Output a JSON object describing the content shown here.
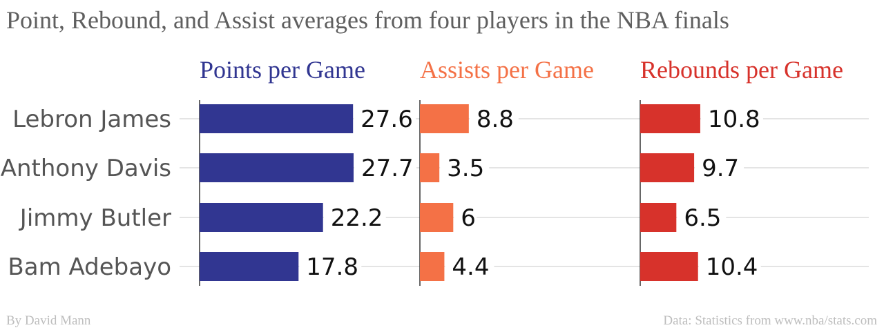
{
  "title": "Point, Rebound, and Assist averages from four players in the NBA finals",
  "footer": {
    "credit": "By David Mann",
    "source": "Data: Statistics from www.nba/stats.com"
  },
  "chart_data": {
    "type": "bar",
    "orientation": "horizontal",
    "title": "Point, Rebound, and Assist averages from four players in the NBA finals",
    "categories": [
      "Lebron James",
      "Anthony Davis",
      "Jimmy Butler",
      "Bam Adebayo"
    ],
    "series": [
      {
        "name": "Points per Game",
        "color": "#313691",
        "values": [
          27.6,
          27.7,
          22.2,
          17.8
        ]
      },
      {
        "name": "Assists per Game",
        "color": "#f47146",
        "values": [
          8.8,
          3.5,
          6,
          4.4
        ]
      },
      {
        "name": "Rebounds per Game",
        "color": "#d7322b",
        "values": [
          10.8,
          9.7,
          6.5,
          10.4
        ]
      }
    ],
    "grid": "horizontal",
    "legend": "none"
  }
}
